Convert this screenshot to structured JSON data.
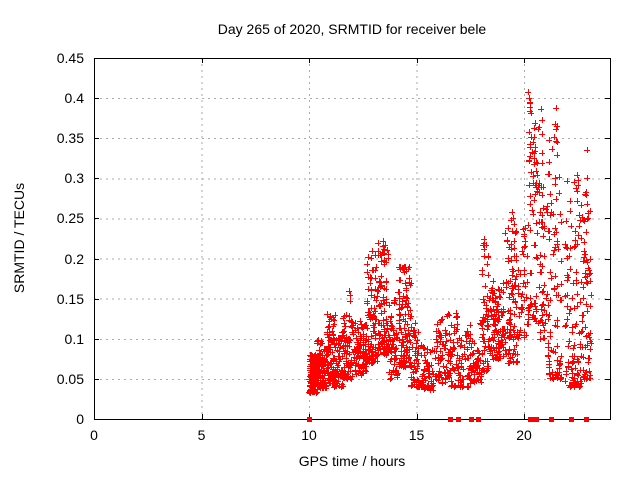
{
  "chart_data": {
    "type": "scatter",
    "title": "Day 265 of 2020, SRMTID for receiver bele",
    "xlabel": "GPS time / hours",
    "ylabel": "SRMTID / TECUs",
    "xlim": [
      0,
      24
    ],
    "ylim": [
      0,
      0.45
    ],
    "xtick_values": [
      0,
      5,
      10,
      15,
      20
    ],
    "xtick_labels": [
      "0",
      "5",
      "10",
      "15",
      "20"
    ],
    "ytick_values": [
      0,
      0.05,
      0.1,
      0.15,
      0.2,
      0.25,
      0.3,
      0.35,
      0.4,
      0.45
    ],
    "ytick_labels": [
      "0",
      "0.05",
      "0.1",
      "0.15",
      "0.2",
      "0.25",
      "0.3",
      "0.35",
      "0.4",
      "0.45"
    ],
    "grid": true,
    "legend": "none",
    "marker": "plus",
    "marker_color": "#ff0000",
    "grid_color": "#aaaaaa",
    "axis_color": "#000000",
    "background_color": "#ffffff",
    "clusters_format": [
      "x_start_hour",
      "x_end_hour",
      "y_min_TECU",
      "y_max_TECU",
      "point_count",
      "low_bias_exponent"
    ],
    "clusters": [
      [
        10.0,
        10.4,
        0.033,
        0.08,
        130,
        1.3
      ],
      [
        10.35,
        10.8,
        0.038,
        0.1,
        90,
        1.6
      ],
      [
        10.8,
        11.2,
        0.045,
        0.135,
        75,
        1.7
      ],
      [
        11.15,
        11.6,
        0.04,
        0.105,
        65,
        1.5
      ],
      [
        11.55,
        12.05,
        0.05,
        0.13,
        65,
        1.6
      ],
      [
        12.05,
        12.65,
        0.055,
        0.125,
        85,
        1.4
      ],
      [
        12.65,
        13.2,
        0.07,
        0.205,
        85,
        1.7
      ],
      [
        13.2,
        13.7,
        0.08,
        0.22,
        95,
        1.5
      ],
      [
        13.7,
        14.15,
        0.05,
        0.15,
        55,
        1.5
      ],
      [
        14.15,
        14.75,
        0.065,
        0.19,
        105,
        1.3
      ],
      [
        14.75,
        15.3,
        0.04,
        0.12,
        60,
        1.6
      ],
      [
        15.3,
        15.85,
        0.035,
        0.09,
        45,
        1.4
      ],
      [
        15.85,
        16.4,
        0.045,
        0.125,
        55,
        1.5
      ],
      [
        16.4,
        17.0,
        0.04,
        0.135,
        60,
        1.6
      ],
      [
        17.0,
        17.5,
        0.04,
        0.11,
        45,
        1.5
      ],
      [
        17.5,
        18.05,
        0.045,
        0.125,
        50,
        1.5
      ],
      [
        18.05,
        18.4,
        0.06,
        0.22,
        55,
        1.8
      ],
      [
        18.4,
        19.1,
        0.075,
        0.175,
        105,
        1.3
      ],
      [
        19.1,
        19.7,
        0.07,
        0.25,
        85,
        1.7
      ],
      [
        19.7,
        20.2,
        0.1,
        0.25,
        40,
        1.3
      ],
      [
        20.2,
        20.7,
        0.12,
        0.4,
        65,
        1.2
      ],
      [
        20.7,
        21.1,
        0.1,
        0.29,
        40,
        1.5
      ],
      [
        21.1,
        21.75,
        0.05,
        0.37,
        85,
        2.2
      ],
      [
        21.9,
        22.65,
        0.04,
        0.3,
        100,
        2.0
      ],
      [
        22.7,
        23.1,
        0.05,
        0.33,
        65,
        1.8
      ]
    ],
    "outlier_points": [
      [
        11.88,
        0.16
      ],
      [
        11.92,
        0.155
      ],
      [
        11.9,
        0.147
      ],
      [
        12.95,
        0.21
      ],
      [
        13.05,
        0.204
      ],
      [
        13.45,
        0.222
      ],
      [
        13.52,
        0.217
      ],
      [
        13.48,
        0.212
      ],
      [
        14.45,
        0.19
      ],
      [
        14.52,
        0.184
      ],
      [
        18.15,
        0.225
      ],
      [
        18.12,
        0.212
      ],
      [
        19.12,
        0.232
      ],
      [
        19.22,
        0.222
      ],
      [
        19.45,
        0.258
      ],
      [
        19.5,
        0.251
      ],
      [
        19.55,
        0.243
      ],
      [
        19.62,
        0.234
      ],
      [
        20.0,
        0.23
      ],
      [
        20.05,
        0.216
      ],
      [
        20.2,
        0.408
      ],
      [
        20.24,
        0.4
      ],
      [
        20.28,
        0.394
      ],
      [
        20.3,
        0.389
      ],
      [
        20.26,
        0.384
      ],
      [
        20.45,
        0.363
      ],
      [
        20.47,
        0.352
      ],
      [
        20.44,
        0.345
      ],
      [
        20.46,
        0.325
      ],
      [
        20.48,
        0.318
      ],
      [
        20.43,
        0.294
      ],
      [
        20.5,
        0.281
      ],
      [
        20.46,
        0.273
      ],
      [
        20.8,
        0.386
      ],
      [
        20.82,
        0.373
      ],
      [
        20.85,
        0.355
      ],
      [
        20.83,
        0.332
      ],
      [
        20.86,
        0.319
      ],
      [
        20.9,
        0.289
      ],
      [
        20.88,
        0.263
      ],
      [
        20.84,
        0.246
      ],
      [
        20.87,
        0.228
      ],
      [
        21.5,
        0.388
      ],
      [
        21.45,
        0.368
      ],
      [
        21.52,
        0.365
      ],
      [
        21.48,
        0.361
      ],
      [
        21.55,
        0.345
      ],
      [
        21.42,
        0.3
      ],
      [
        21.44,
        0.293
      ],
      [
        21.5,
        0.274
      ],
      [
        21.46,
        0.238
      ],
      [
        21.53,
        0.222
      ],
      [
        21.92,
        0.218
      ],
      [
        21.97,
        0.215
      ],
      [
        22.02,
        0.213
      ],
      [
        22.48,
        0.304
      ],
      [
        22.52,
        0.298
      ],
      [
        22.5,
        0.292
      ],
      [
        22.55,
        0.254
      ],
      [
        22.57,
        0.24
      ],
      [
        22.53,
        0.229
      ],
      [
        22.92,
        0.335
      ],
      [
        22.95,
        0.3
      ],
      [
        22.9,
        0.283
      ],
      [
        22.94,
        0.268
      ],
      [
        22.97,
        0.251
      ]
    ],
    "zero_value_marker_hours": [
      10.02,
      16.55,
      16.95,
      17.55,
      17.87,
      20.28,
      20.42,
      20.56,
      21.27,
      22.19,
      22.89
    ]
  }
}
